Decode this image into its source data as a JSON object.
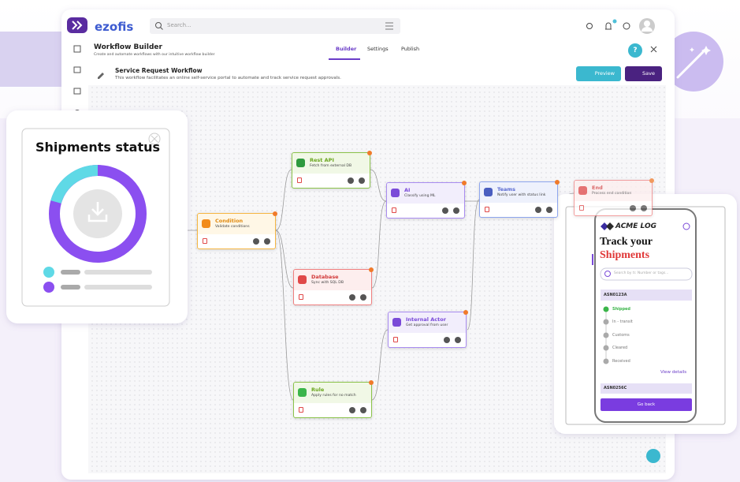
{
  "app": {
    "logo": "ezofis",
    "search_placeholder": "Search...",
    "header": {
      "title": "Workflow Builder",
      "subtitle": "Create and automate workflows with our intuitive workflow builder"
    },
    "tabs": [
      "Builder",
      "Settings",
      "Publish"
    ],
    "help": "?",
    "workflow": {
      "title": "Service Request Workflow",
      "description": "This workflow facilitates an online self-service portal to automate and track service request approvals."
    },
    "buttons": {
      "preview": "Preview",
      "save": "Save"
    }
  },
  "nodes": [
    {
      "label": "Rest API",
      "description": "Fetch from external DB"
    },
    {
      "label": "Condition",
      "description": "Validate conditions"
    },
    {
      "label": "Database",
      "description": "Sync with SQL DB"
    },
    {
      "label": "Rule",
      "description": "Apply rules for no match"
    },
    {
      "label": "AI",
      "description": "Classify using ML"
    },
    {
      "label": "Internal Actor",
      "description": "Get approval from user"
    },
    {
      "label": "Teams",
      "description": "Notify user with status link"
    },
    {
      "label": "End",
      "description": "Process end condition"
    }
  ],
  "shipments_card": {
    "title": "Shipments status"
  },
  "phone": {
    "brand": "ACME LOG",
    "heading_1": "Track your",
    "heading_2": "Shipments",
    "search_placeholder": "Search by tr. Number or tags...",
    "shipment_1": "ASN0123A",
    "statuses": [
      "Shipped",
      "In - transit",
      "Customs",
      "Cleared",
      "Received"
    ],
    "view_details": "View details",
    "shipment_2": "ASN0256C",
    "go_back": "Go back"
  }
}
